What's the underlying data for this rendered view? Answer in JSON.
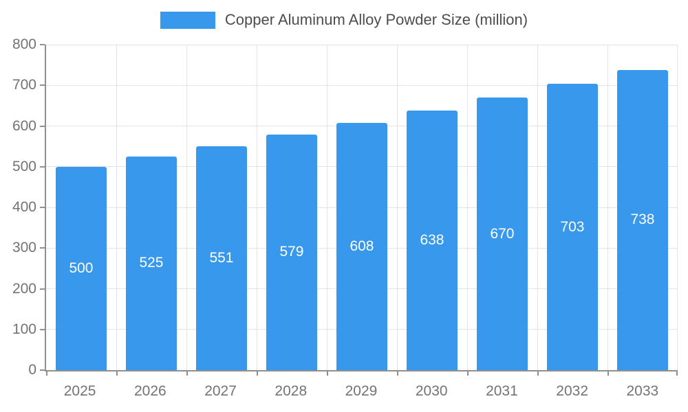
{
  "chart_data": {
    "type": "bar",
    "title": "Copper Aluminum Alloy Powder Size (million)",
    "categories": [
      "2025",
      "2026",
      "2027",
      "2028",
      "2029",
      "2030",
      "2031",
      "2032",
      "2033"
    ],
    "values": [
      500,
      525,
      551,
      579,
      608,
      638,
      670,
      703,
      738
    ],
    "xlabel": "",
    "ylabel": "",
    "ylim": [
      0,
      800
    ],
    "ytick": 100,
    "grid": true,
    "legend_position": "top",
    "colors": {
      "bar": "#3898EC",
      "grid": "#E3E3E3",
      "axis": "#8F8F8F",
      "tick_label": "#737373",
      "title": "#4D4D4D",
      "bar_label": "#FFFFFF"
    }
  }
}
